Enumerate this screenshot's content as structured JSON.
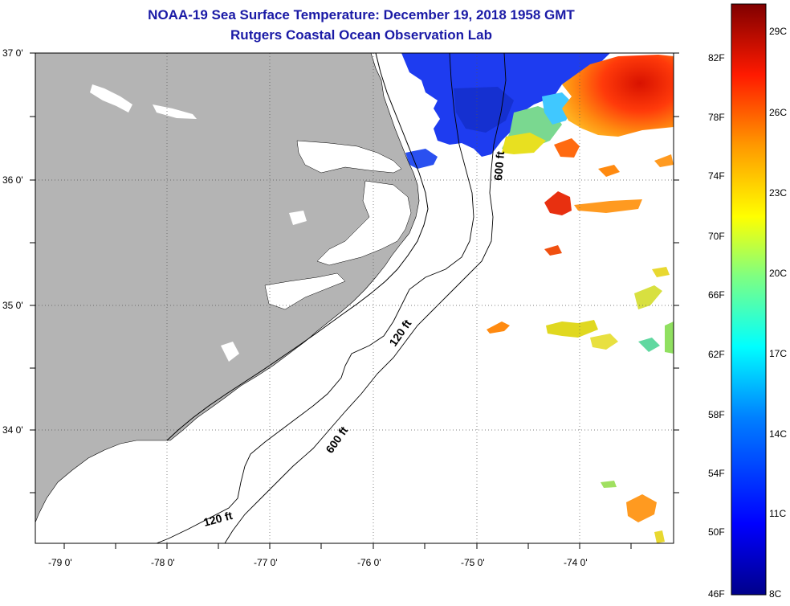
{
  "title": {
    "line1": "NOAA-19 Sea Surface Temperature:  December 19, 2018 1958 GMT",
    "line2": "Rutgers Coastal Ocean Observation Lab"
  },
  "axes": {
    "lat_ticks": [
      "37 0'",
      "36 0'",
      "35 0'",
      "34 0'"
    ],
    "lon_ticks": [
      "-79 0'",
      "-78 0'",
      "-77 0'",
      "-76 0'",
      "-75 0'",
      "-74 0'"
    ]
  },
  "contours": {
    "label_120": "120 ft",
    "label_600": "600 ft"
  },
  "colorbar": {
    "f_labels": [
      "82F",
      "78F",
      "74F",
      "70F",
      "66F",
      "62F",
      "58F",
      "54F",
      "50F",
      "46F"
    ],
    "c_labels": [
      "29C",
      "26C",
      "23C",
      "20C",
      "17C",
      "14C",
      "11C",
      "8C"
    ]
  },
  "colors": {
    "land": "#b4b4b4",
    "title": "#1a1aa6",
    "cold": "#1e3cf0",
    "warm": "#f03c0a"
  }
}
